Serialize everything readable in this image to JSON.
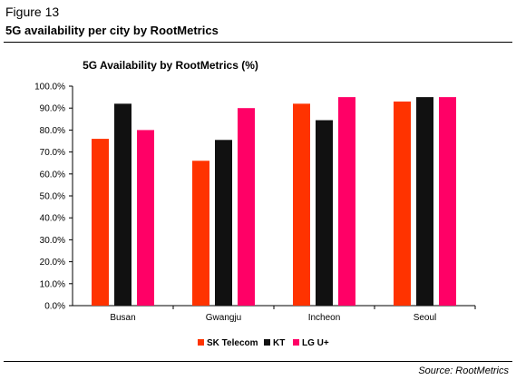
{
  "figure": {
    "label": "Figure 13",
    "title": "5G availability per city by RootMetrics",
    "source": "Source: RootMetrics"
  },
  "colors": {
    "SK Telecom": "#ff3300",
    "KT": "#111111",
    "LG U+": "#ff0066"
  },
  "chart_data": {
    "type": "bar",
    "title": "5G Availability by RootMetrics (%)",
    "xlabel": "",
    "ylabel": "",
    "ylim": [
      0,
      100
    ],
    "yticks": [
      "0.0%",
      "10.0%",
      "20.0%",
      "30.0%",
      "40.0%",
      "50.0%",
      "60.0%",
      "70.0%",
      "80.0%",
      "90.0%",
      "100.0%"
    ],
    "categories": [
      "Busan",
      "Gwangju",
      "Incheon",
      "Seoul"
    ],
    "series": [
      {
        "name": "SK Telecom",
        "values": [
          76.0,
          66.0,
          92.0,
          93.0
        ]
      },
      {
        "name": "KT",
        "values": [
          92.0,
          75.5,
          84.5,
          95.0
        ]
      },
      {
        "name": "LG U+",
        "values": [
          80.0,
          90.0,
          95.0,
          95.0
        ]
      }
    ],
    "legend": "bottom",
    "grid": false
  }
}
